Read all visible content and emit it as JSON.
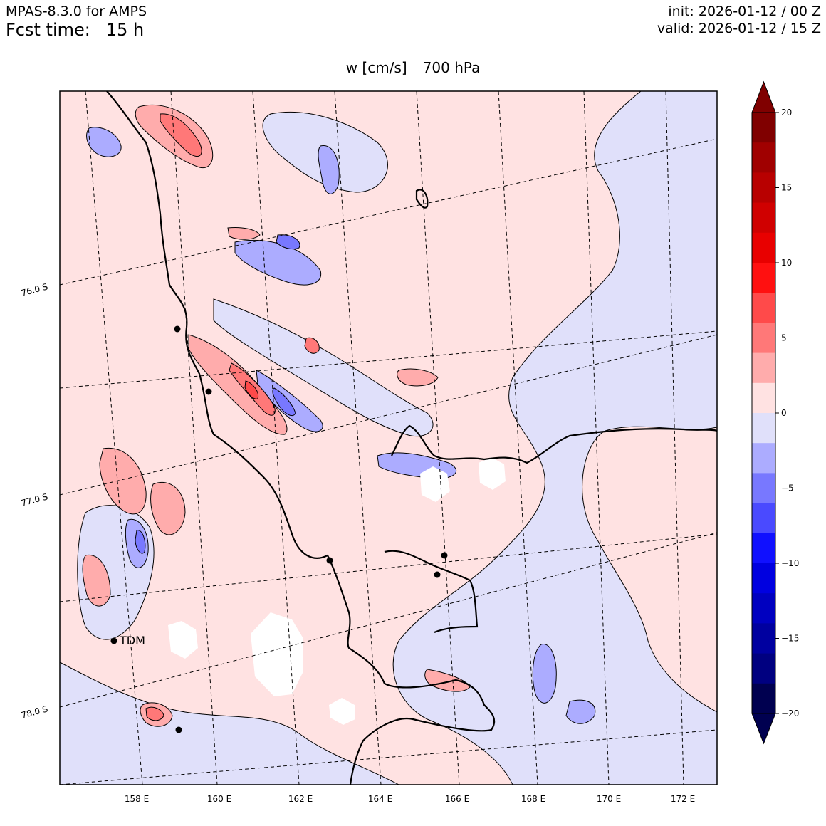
{
  "header": {
    "model": "MPAS-8.3.0 for AMPS",
    "fcst_label": "Fcst time:",
    "fcst_value": "15 h",
    "init": "init: 2026-01-12 / 00 Z",
    "valid": "valid: 2026-01-12 / 15 Z"
  },
  "title": {
    "variable": "w [cm/s]",
    "level": "700 hPa"
  },
  "map": {
    "lon_labels": [
      "158 E",
      "160 E",
      "162 E",
      "164 E",
      "166 E",
      "168 E",
      "170 E",
      "172 E"
    ],
    "lat_labels": [
      "76.0 S",
      "77.0 S",
      "78.0 S"
    ],
    "station_label": "TDM"
  },
  "colorbar": {
    "levels": [
      -20,
      -18,
      -16,
      -14,
      -12,
      -10,
      -8,
      -6,
      -4,
      -2,
      0,
      2,
      4,
      6,
      8,
      10,
      12,
      14,
      16,
      18,
      20
    ],
    "tick_labels": [
      "20",
      "15",
      "10",
      "5",
      "0",
      "−5",
      "−10",
      "−15",
      "−20"
    ],
    "colors_top_to_bottom": [
      "#800000",
      "#a00000",
      "#b80000",
      "#d00000",
      "#e80000",
      "#ff1010",
      "#ff4a4a",
      "#ff7878",
      "#ffacac",
      "#ffe2e2",
      "#e0e0fa",
      "#acacff",
      "#7878ff",
      "#4a4aff",
      "#1010ff",
      "#0000e0",
      "#0000c0",
      "#0000a0",
      "#000080",
      "#000050"
    ],
    "over_color": "#800000",
    "under_color": "#000050"
  }
}
